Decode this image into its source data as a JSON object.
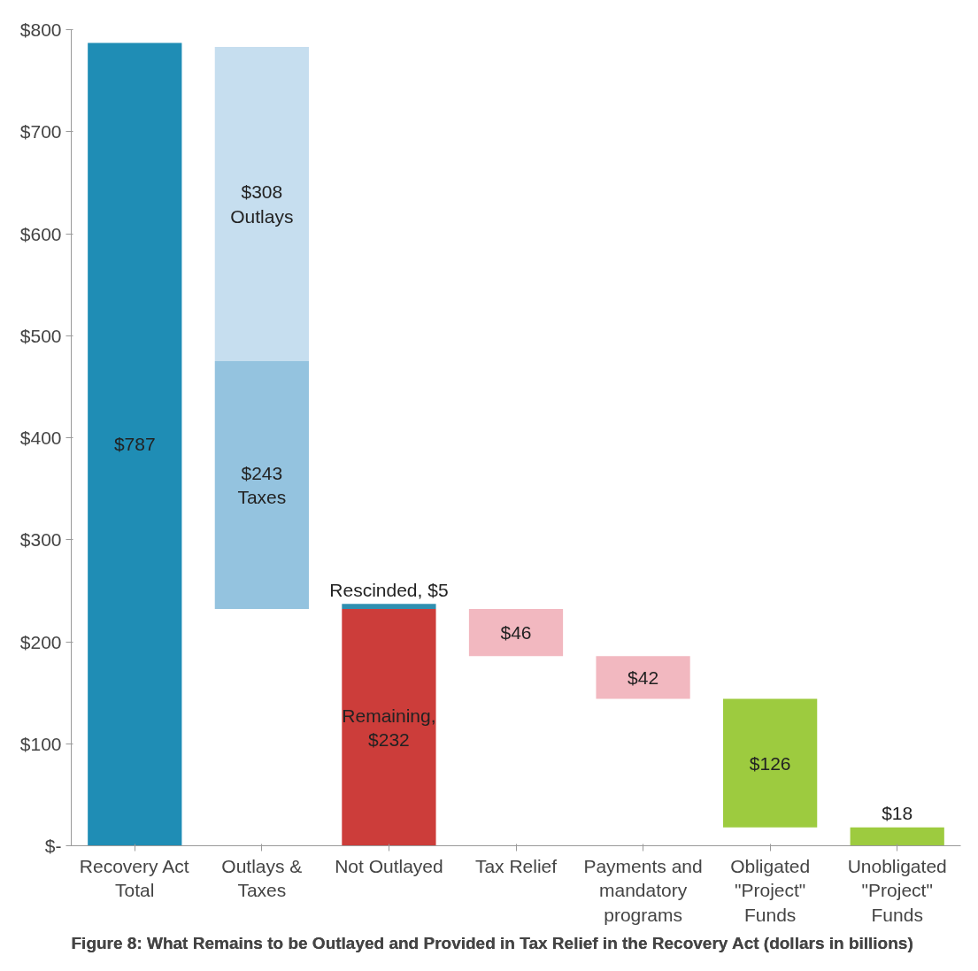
{
  "chart_data": {
    "type": "bar",
    "title": "Figure 8:  What Remains to be Outlayed and Provided in Tax Relief in the Recovery Act (dollars in billions)",
    "categories": [
      "Recovery Act\nTotal",
      "Outlays &\nTaxes",
      "Not Outlayed",
      "Tax Relief",
      "Payments and\nmandatory\nprograms",
      "Obligated\n\"Project\"\nFunds",
      "Unobligated\n\"Project\"\nFunds"
    ],
    "series": [
      {
        "color": "#1f8db5",
        "values": [
          787,
          null,
          null,
          null,
          null,
          null,
          null
        ],
        "base": [
          0,
          null,
          null,
          null,
          null,
          null,
          null
        ],
        "value_labels": [
          "$787",
          null,
          null,
          null,
          null,
          null,
          null
        ]
      },
      {
        "color": "#94c3df",
        "values": [
          null,
          243,
          null,
          null,
          null,
          null,
          null
        ],
        "base": [
          null,
          232,
          null,
          null,
          null,
          null,
          null
        ],
        "value_labels": [
          null,
          "$243\nTaxes",
          null,
          null,
          null,
          null,
          null
        ]
      },
      {
        "color": "#c6deef",
        "values": [
          null,
          308,
          null,
          null,
          null,
          null,
          null
        ],
        "base": [
          null,
          475,
          null,
          null,
          null,
          null,
          null
        ],
        "value_labels": [
          null,
          "$308\nOutlays",
          null,
          null,
          null,
          null,
          null
        ]
      },
      {
        "color": "#cc3d3a",
        "values": [
          null,
          null,
          232,
          null,
          null,
          null,
          null
        ],
        "base": [
          null,
          null,
          0,
          null,
          null,
          null,
          null
        ],
        "value_labels": [
          null,
          null,
          "Remaining,\n$232",
          null,
          null,
          null,
          null
        ]
      },
      {
        "color": "#2f8fb0",
        "values": [
          null,
          null,
          5,
          null,
          null,
          null,
          null
        ],
        "base": [
          null,
          null,
          232,
          null,
          null,
          null,
          null
        ],
        "value_labels": [
          null,
          null,
          "Rescinded, $5",
          null,
          null,
          null,
          null
        ]
      },
      {
        "color": "#f2b8c0",
        "values": [
          null,
          null,
          null,
          46,
          42,
          null,
          null
        ],
        "base": [
          null,
          null,
          null,
          186,
          144,
          null,
          null
        ],
        "value_labels": [
          null,
          null,
          null,
          "$46",
          "$42",
          null,
          null
        ]
      },
      {
        "color": "#9dcb3f",
        "values": [
          null,
          null,
          null,
          null,
          null,
          126,
          18
        ],
        "base": [
          null,
          null,
          null,
          null,
          null,
          18,
          0
        ],
        "value_labels": [
          null,
          null,
          null,
          null,
          null,
          "$126",
          "$18"
        ]
      }
    ],
    "ylim": [
      0,
      800
    ],
    "yticks": [
      {
        "value": 0,
        "label": "$-"
      },
      {
        "value": 100,
        "label": "$100"
      },
      {
        "value": 200,
        "label": "$200"
      },
      {
        "value": 300,
        "label": "$300"
      },
      {
        "value": 400,
        "label": "$400"
      },
      {
        "value": 500,
        "label": "$500"
      },
      {
        "value": 600,
        "label": "$600"
      },
      {
        "value": 700,
        "label": "$700"
      },
      {
        "value": 800,
        "label": "$800"
      }
    ],
    "grid": false
  }
}
